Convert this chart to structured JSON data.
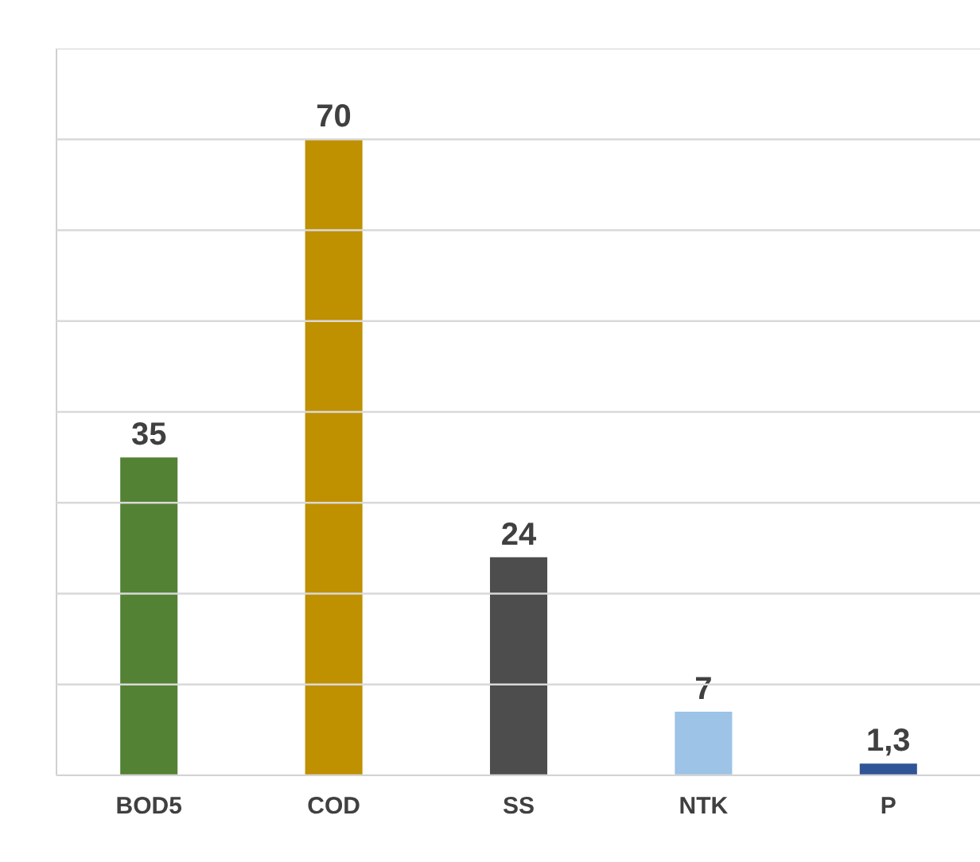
{
  "chart_data": {
    "type": "bar",
    "categories": [
      "BOD5",
      "COD",
      "SS",
      "NTK",
      "P"
    ],
    "values": [
      35,
      70,
      24,
      7,
      1.3
    ],
    "colors": [
      "#548235",
      "#bf9000",
      "#4d4d4d",
      "#9dc3e6",
      "#2f5597"
    ],
    "value_labels": [
      "35",
      "70",
      "24",
      "7",
      "1,3"
    ],
    "ylim": [
      0,
      80
    ],
    "yticks": [
      {
        "value": 0,
        "label": null
      },
      {
        "value": 10,
        "label": null
      },
      {
        "value": 20,
        "label": null
      },
      {
        "value": 30,
        "label": null
      },
      {
        "value": 40,
        "label": null
      },
      {
        "value": 50,
        "label": null
      },
      {
        "value": 60,
        "label": null
      },
      {
        "value": 70,
        "label": null
      },
      {
        "value": 80,
        "label": null
      }
    ],
    "grid": "y",
    "tick_labels": "x"
  }
}
